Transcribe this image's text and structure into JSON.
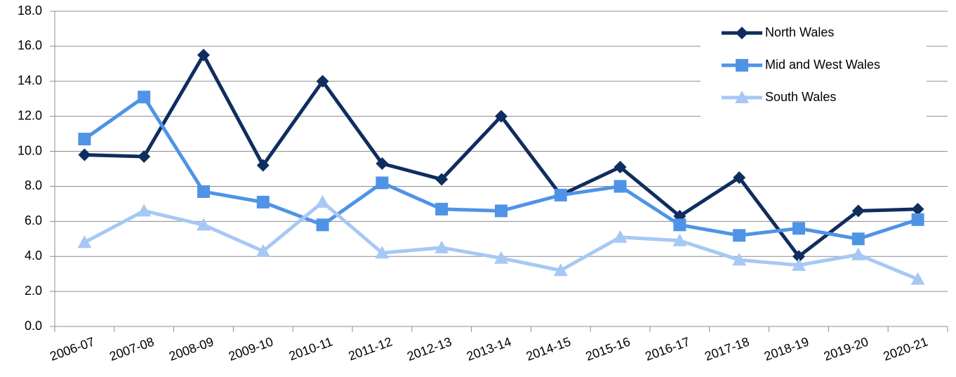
{
  "chart_data": {
    "type": "line",
    "categories": [
      "2006-07",
      "2007-08",
      "2008-09",
      "2009-10",
      "2010-11",
      "2011-12",
      "2012-13",
      "2013-14",
      "2014-15",
      "2015-16",
      "2016-17",
      "2017-18",
      "2018-19",
      "2019-20",
      "2020-21"
    ],
    "series": [
      {
        "name": "North Wales",
        "color": "#0f2d5e",
        "marker": "diamond",
        "values": [
          9.8,
          9.7,
          15.5,
          9.2,
          14.0,
          9.3,
          8.4,
          12.0,
          7.5,
          9.1,
          6.3,
          8.5,
          4.0,
          6.6,
          6.7
        ]
      },
      {
        "name": "Mid and West Wales",
        "color": "#4f93e6",
        "marker": "square",
        "values": [
          10.7,
          13.1,
          7.7,
          7.1,
          5.8,
          8.2,
          6.7,
          6.6,
          7.5,
          8.0,
          5.8,
          5.2,
          5.6,
          5.0,
          6.1
        ]
      },
      {
        "name": "South Wales",
        "color": "#a6c8f4",
        "marker": "triangle",
        "values": [
          4.8,
          6.6,
          5.8,
          4.3,
          7.1,
          4.2,
          4.5,
          3.9,
          3.2,
          5.1,
          4.9,
          3.8,
          3.5,
          4.1,
          2.7
        ]
      }
    ],
    "ylim": [
      0,
      18
    ],
    "yticks": [
      {
        "value": 0,
        "label": "0.0"
      },
      {
        "value": 2,
        "label": "2.0"
      },
      {
        "value": 4,
        "label": "4.0"
      },
      {
        "value": 6,
        "label": "6.0"
      },
      {
        "value": 8,
        "label": "8.0"
      },
      {
        "value": 10,
        "label": "10.0"
      },
      {
        "value": 12,
        "label": "12.0"
      },
      {
        "value": 14,
        "label": "14.0"
      },
      {
        "value": 16,
        "label": "16.0"
      },
      {
        "value": 18,
        "label": "18.0"
      }
    ],
    "grid": true,
    "legend": "upper right"
  }
}
